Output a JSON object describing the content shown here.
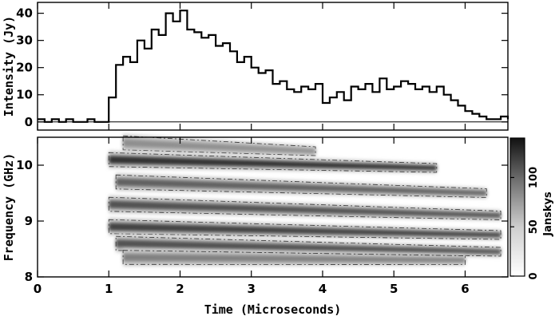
{
  "chart_data": [
    {
      "type": "line",
      "title": "",
      "xlabel": "",
      "ylabel": "Intensity (Jy)",
      "xlim": [
        0,
        6.6
      ],
      "ylim": [
        -3,
        44
      ],
      "x_ticks": [
        0,
        1,
        2,
        3,
        4,
        5,
        6
      ],
      "y_ticks": [
        0,
        10,
        20,
        30,
        40
      ],
      "y_tick_labels": [
        "0",
        "10",
        "20",
        "30",
        "40"
      ],
      "grid": false,
      "series": [
        {
          "x": [
            0.0,
            0.1,
            0.2,
            0.3,
            0.4,
            0.5,
            0.6,
            0.7,
            0.8,
            0.9,
            1.0,
            1.1,
            1.2,
            1.3,
            1.4,
            1.5,
            1.6,
            1.7,
            1.8,
            1.9,
            2.0,
            2.1,
            2.2,
            2.3,
            2.4,
            2.5,
            2.6,
            2.7,
            2.8,
            2.9,
            3.0,
            3.1,
            3.2,
            3.3,
            3.4,
            3.5,
            3.6,
            3.7,
            3.8,
            3.9,
            4.0,
            4.1,
            4.2,
            4.3,
            4.4,
            4.5,
            4.6,
            4.7,
            4.8,
            4.9,
            5.0,
            5.1,
            5.2,
            5.3,
            5.4,
            5.5,
            5.6,
            5.7,
            5.8,
            5.9,
            6.0,
            6.1,
            6.2,
            6.3,
            6.4,
            6.5,
            6.6
          ],
          "values": [
            1,
            0,
            1,
            0,
            1,
            0,
            0,
            1,
            0,
            0,
            9,
            21,
            24,
            22,
            30,
            27,
            34,
            32,
            40,
            37,
            41,
            34,
            33,
            31,
            32,
            28,
            29,
            26,
            22,
            24,
            20,
            18,
            19,
            14,
            15,
            12,
            11,
            13,
            12,
            14,
            7,
            9,
            11,
            8,
            13,
            12,
            14,
            11,
            16,
            12,
            13,
            15,
            14,
            12,
            13,
            11,
            13,
            10,
            8,
            6,
            4,
            3,
            2,
            1,
            1,
            2,
            1
          ]
        }
      ]
    },
    {
      "type": "heatmap",
      "title": "",
      "xlabel": "Time (Microseconds)",
      "ylabel": "Frequency (GHz)",
      "xlim": [
        0,
        6.6
      ],
      "ylim": [
        8,
        10.5
      ],
      "x_ticks": [
        0,
        1,
        2,
        3,
        4,
        5,
        6
      ],
      "x_tick_labels": [
        "0",
        "1",
        "2",
        "3",
        "4",
        "5",
        "6"
      ],
      "y_ticks": [
        8,
        9,
        10
      ],
      "y_tick_labels": [
        "8",
        "9",
        "10"
      ],
      "colorbar": {
        "label": "Janskys",
        "ticks": [
          0,
          50,
          100
        ],
        "tick_labels": [
          "0",
          "50",
          "100"
        ],
        "range": [
          0,
          140
        ]
      },
      "grid": false,
      "bands": [
        {
          "t_start": 1.2,
          "t_end": 3.9,
          "f_start": 10.4,
          "f_end": 10.25,
          "peak": 60
        },
        {
          "t_start": 1.0,
          "t_end": 5.6,
          "f_start": 10.1,
          "f_end": 9.95,
          "peak": 120
        },
        {
          "t_start": 1.1,
          "t_end": 6.3,
          "f_start": 9.7,
          "f_end": 9.5,
          "peak": 90
        },
        {
          "t_start": 1.0,
          "t_end": 6.5,
          "f_start": 9.3,
          "f_end": 9.1,
          "peak": 100
        },
        {
          "t_start": 1.0,
          "t_end": 6.5,
          "f_start": 8.9,
          "f_end": 8.75,
          "peak": 110
        },
        {
          "t_start": 1.1,
          "t_end": 6.5,
          "f_start": 8.6,
          "f_end": 8.45,
          "peak": 100
        },
        {
          "t_start": 1.2,
          "t_end": 6.0,
          "f_start": 8.35,
          "f_end": 8.3,
          "peak": 70
        }
      ]
    }
  ]
}
